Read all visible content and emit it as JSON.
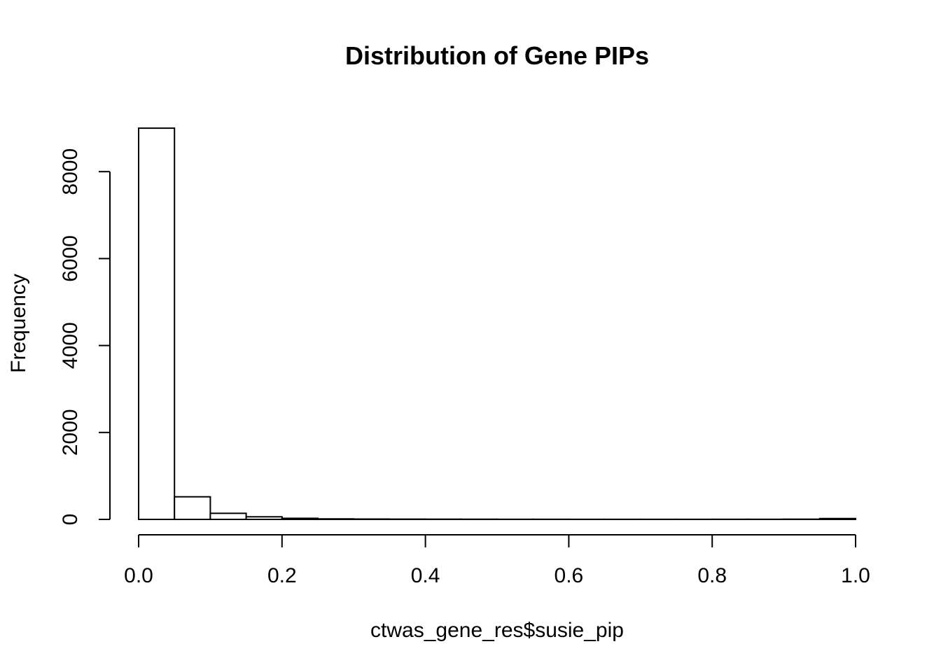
{
  "chart_data": {
    "type": "bar",
    "subtype": "histogram",
    "title": "Distribution of Gene PIPs",
    "xlabel": "ctwas_gene_res$susie_pip",
    "ylabel": "Frequency",
    "bin_edges": [
      0.0,
      0.05,
      0.1,
      0.15,
      0.2,
      0.25,
      0.3,
      0.35,
      0.4,
      0.45,
      0.5,
      0.55,
      0.6,
      0.65,
      0.7,
      0.75,
      0.8,
      0.85,
      0.9,
      0.95,
      1.0
    ],
    "values": [
      9000,
      520,
      140,
      60,
      25,
      12,
      8,
      6,
      5,
      4,
      3,
      3,
      2,
      2,
      2,
      2,
      3,
      3,
      5,
      20
    ],
    "xlim": [
      0.0,
      1.0
    ],
    "ylim": [
      0,
      9000
    ],
    "x_ticks": [
      0.0,
      0.2,
      0.4,
      0.6,
      0.8,
      1.0
    ],
    "x_tick_labels": [
      "0.0",
      "0.2",
      "0.4",
      "0.6",
      "0.8",
      "1.0"
    ],
    "y_ticks": [
      0,
      2000,
      4000,
      6000,
      8000
    ],
    "y_tick_labels": [
      "0",
      "2000",
      "4000",
      "6000",
      "8000"
    ],
    "grid": false,
    "legend": "none",
    "colors": {
      "bar_fill": "#ffffff",
      "bar_stroke": "#000000"
    }
  }
}
